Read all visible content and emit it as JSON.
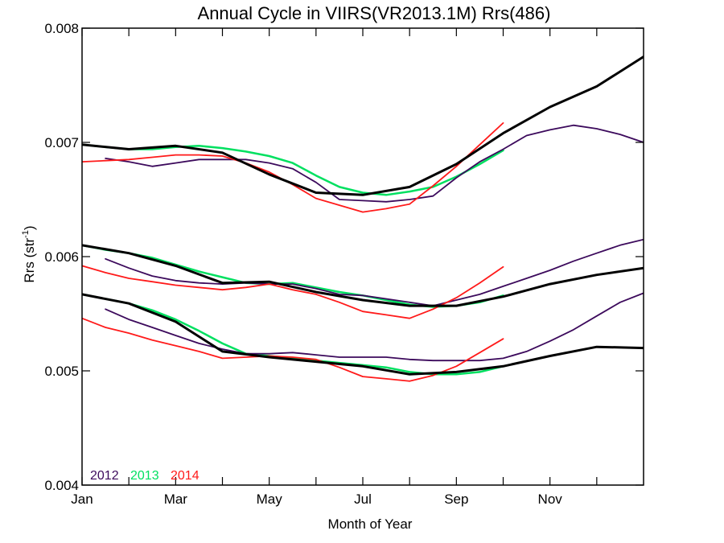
{
  "chart_data": {
    "type": "line",
    "title": "Annual Cycle in VIIRS(VR2013.1M) Rrs(486)",
    "xlabel": "Month of Year",
    "ylabel_main": "Rrs (str",
    "ylabel_sup": "-1",
    "ylabel_end": ")",
    "xlim": [
      1,
      13
    ],
    "ylim": [
      0.004,
      0.008
    ],
    "x_ticks": [
      {
        "value": 1,
        "label": "Jan"
      },
      {
        "value": 3,
        "label": "Mar"
      },
      {
        "value": 5,
        "label": "May"
      },
      {
        "value": 7,
        "label": "Jul"
      },
      {
        "value": 9,
        "label": "Sep"
      },
      {
        "value": 11,
        "label": "Nov"
      }
    ],
    "x_minor_ticks": [
      2,
      4,
      6,
      8,
      10,
      12
    ],
    "y_ticks": [
      {
        "value": 0.004,
        "label": "0.004"
      },
      {
        "value": 0.005,
        "label": "0.005"
      },
      {
        "value": 0.006,
        "label": "0.006"
      },
      {
        "value": 0.007,
        "label": "0.007"
      },
      {
        "value": 0.008,
        "label": "0.008"
      }
    ],
    "legend": [
      {
        "label": "2012",
        "color": "#3c0a5c"
      },
      {
        "label": "2013",
        "color": "#00e060"
      },
      {
        "label": "2014",
        "color": "#ff1a1a"
      }
    ],
    "legend_position": "bottom-left",
    "series": [
      {
        "year": "2013",
        "color": "#00e060",
        "width": 2.5,
        "x": [
          1,
          1.5,
          2,
          2.5,
          3,
          3.5,
          4,
          4.5,
          5,
          5.5,
          6,
          6.5,
          7,
          7.5,
          8,
          8.5,
          9,
          9.5,
          10
        ],
        "y": [
          0.00698,
          0.00696,
          0.00694,
          0.00694,
          0.00696,
          0.00697,
          0.00695,
          0.00692,
          0.00688,
          0.00682,
          0.00671,
          0.00661,
          0.00656,
          0.00654,
          0.00657,
          0.00661,
          0.0067,
          0.00681,
          0.00693
        ]
      },
      {
        "year": "2013",
        "color": "#00e060",
        "width": 2.5,
        "x": [
          1,
          1.5,
          2,
          2.5,
          3,
          3.5,
          4,
          4.5,
          5,
          5.5,
          6,
          6.5,
          7,
          7.5,
          8,
          8.5,
          9,
          9.5,
          10
        ],
        "y": [
          0.0061,
          0.00606,
          0.00603,
          0.00599,
          0.00593,
          0.00587,
          0.00582,
          0.00577,
          0.00576,
          0.00577,
          0.00573,
          0.00569,
          0.00566,
          0.00562,
          0.00558,
          0.00556,
          0.00557,
          0.0056,
          0.00566
        ]
      },
      {
        "year": "2013",
        "color": "#00e060",
        "width": 2.5,
        "x": [
          1,
          1.5,
          2,
          2.5,
          3,
          3.5,
          4,
          4.5,
          5,
          5.5,
          6,
          6.5,
          7,
          7.5,
          8,
          8.5,
          9,
          9.5,
          10
        ],
        "y": [
          0.00567,
          0.00563,
          0.00559,
          0.00553,
          0.00545,
          0.00535,
          0.00524,
          0.00515,
          0.00513,
          0.00511,
          0.00509,
          0.00507,
          0.00505,
          0.00503,
          0.00499,
          0.00497,
          0.00497,
          0.00499,
          0.00504
        ]
      },
      {
        "year": "2012",
        "color": "#3c0a5c",
        "width": 1.8,
        "x": [
          1.5,
          2,
          2.5,
          3,
          3.5,
          4,
          4.5,
          5,
          5.5,
          6,
          6.5,
          7,
          7.5,
          8,
          8.5,
          9,
          9.5,
          10,
          10.5,
          11,
          11.5,
          12,
          12.5,
          13
        ],
        "y": [
          0.00686,
          0.00683,
          0.00679,
          0.00682,
          0.00685,
          0.00685,
          0.00685,
          0.00682,
          0.00677,
          0.00665,
          0.0065,
          0.00649,
          0.00648,
          0.0065,
          0.00653,
          0.00669,
          0.00683,
          0.00694,
          0.00706,
          0.00711,
          0.00715,
          0.00712,
          0.00707,
          0.007
        ]
      },
      {
        "year": "2012",
        "color": "#3c0a5c",
        "width": 1.8,
        "x": [
          1.5,
          2,
          2.5,
          3,
          3.5,
          4,
          4.5,
          5,
          5.5,
          6,
          6.5,
          7,
          7.5,
          8,
          8.5,
          9,
          9.5,
          10,
          10.5,
          11,
          11.5,
          12,
          12.5,
          13
        ],
        "y": [
          0.00598,
          0.0059,
          0.00583,
          0.00579,
          0.00577,
          0.00576,
          0.00577,
          0.00576,
          0.00576,
          0.00572,
          0.00567,
          0.00566,
          0.00563,
          0.0056,
          0.00557,
          0.00562,
          0.00567,
          0.00574,
          0.00581,
          0.00588,
          0.00596,
          0.00603,
          0.0061,
          0.00615
        ]
      },
      {
        "year": "2012",
        "color": "#3c0a5c",
        "width": 1.8,
        "x": [
          1.5,
          2,
          2.5,
          3,
          3.5,
          4,
          4.5,
          5,
          5.5,
          6,
          6.5,
          7,
          7.5,
          8,
          8.5,
          9,
          9.5,
          10,
          10.5,
          11,
          11.5,
          12,
          12.5,
          13
        ],
        "y": [
          0.00554,
          0.00545,
          0.00538,
          0.00531,
          0.00524,
          0.00519,
          0.00515,
          0.00515,
          0.00516,
          0.00514,
          0.00512,
          0.00512,
          0.00512,
          0.0051,
          0.00509,
          0.00509,
          0.00509,
          0.00511,
          0.00517,
          0.00526,
          0.00536,
          0.00548,
          0.0056,
          0.00568
        ]
      },
      {
        "year": "2014",
        "color": "#ff1a1a",
        "width": 1.8,
        "x": [
          1,
          1.5,
          2,
          2.5,
          3,
          3.5,
          4,
          4.5,
          5,
          5.5,
          6,
          6.5,
          7,
          7.5,
          8,
          8.5,
          9,
          9.5,
          10
        ],
        "y": [
          0.00683,
          0.00684,
          0.00685,
          0.00687,
          0.00689,
          0.00689,
          0.00688,
          0.00682,
          0.00674,
          0.00663,
          0.00651,
          0.00645,
          0.00639,
          0.00642,
          0.00646,
          0.00662,
          0.00679,
          0.00698,
          0.00717
        ]
      },
      {
        "year": "2014",
        "color": "#ff1a1a",
        "width": 1.8,
        "x": [
          1,
          1.5,
          2,
          2.5,
          3,
          3.5,
          4,
          4.5,
          5,
          5.5,
          6,
          6.5,
          7,
          7.5,
          8,
          8.5,
          9,
          9.5,
          10
        ],
        "y": [
          0.00592,
          0.00586,
          0.00581,
          0.00578,
          0.00575,
          0.00573,
          0.00571,
          0.00573,
          0.00576,
          0.00571,
          0.00567,
          0.0056,
          0.00552,
          0.00549,
          0.00546,
          0.00554,
          0.00564,
          0.00577,
          0.00591
        ]
      },
      {
        "year": "2014",
        "color": "#ff1a1a",
        "width": 1.8,
        "x": [
          1,
          1.5,
          2,
          2.5,
          3,
          3.5,
          4,
          4.5,
          5,
          5.5,
          6,
          6.5,
          7,
          7.5,
          8,
          8.5,
          9,
          9.5,
          10
        ],
        "y": [
          0.00546,
          0.00538,
          0.00533,
          0.00527,
          0.00522,
          0.00517,
          0.00511,
          0.00512,
          0.00513,
          0.00512,
          0.0051,
          0.00503,
          0.00495,
          0.00493,
          0.00491,
          0.00496,
          0.00504,
          0.00516,
          0.00528
        ]
      },
      {
        "year": "mean",
        "color": "#000000",
        "width": 3,
        "x": [
          1,
          2,
          3,
          4,
          5,
          6,
          7,
          8,
          9,
          10,
          11,
          12,
          13
        ],
        "y": [
          0.00698,
          0.00694,
          0.00697,
          0.00691,
          0.00672,
          0.00656,
          0.00654,
          0.00661,
          0.00681,
          0.00708,
          0.00731,
          0.00749,
          0.00775
        ]
      },
      {
        "year": "mean",
        "color": "#000000",
        "width": 3,
        "x": [
          1,
          2,
          3,
          4,
          5,
          6,
          7,
          8,
          9,
          10,
          11,
          12,
          13
        ],
        "y": [
          0.0061,
          0.00603,
          0.00592,
          0.00577,
          0.00578,
          0.00569,
          0.00562,
          0.00557,
          0.00557,
          0.00565,
          0.00576,
          0.00584,
          0.0059
        ]
      },
      {
        "year": "mean",
        "color": "#000000",
        "width": 3,
        "x": [
          1,
          2,
          3,
          4,
          5,
          6,
          7,
          8,
          9,
          10,
          11,
          12,
          13
        ],
        "y": [
          0.00567,
          0.00559,
          0.00543,
          0.00517,
          0.00512,
          0.00508,
          0.00504,
          0.00497,
          0.00499,
          0.00504,
          0.00513,
          0.00521,
          0.0052
        ]
      }
    ]
  }
}
